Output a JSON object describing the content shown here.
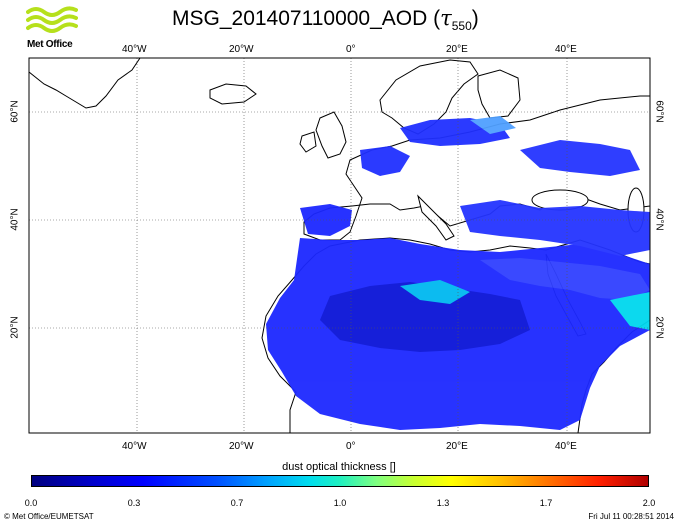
{
  "header": {
    "logo_text": "Met Office",
    "title_prefix": "MSG_201407110000_AOD (",
    "title_symbol": "τ",
    "title_sub": "550",
    "title_suffix": ")"
  },
  "map": {
    "lon_labels_top": [
      "40°W",
      "20°W",
      "0°",
      "20°E",
      "40°E"
    ],
    "lon_labels_bottom": [
      "40°W",
      "20°W",
      "0°",
      "20°E",
      "40°E"
    ],
    "lat_labels_left": [
      "60°N",
      "40°N",
      "20°N"
    ],
    "lat_labels_right": [
      "60°N",
      "40°N",
      "20°N"
    ],
    "gridlines": true,
    "colors": {
      "land": "#ffffff",
      "coast": "#000000",
      "aod_low": "#0000ff",
      "aod_mid": "#00ddee"
    }
  },
  "colorbar": {
    "title": "dust optical thickness []",
    "ticks": [
      "0.0",
      "0.3",
      "0.7",
      "1.0",
      "1.3",
      "1.7",
      "2.0"
    ],
    "range": [
      0.0,
      2.0
    ]
  },
  "footer": {
    "credit": "© Met Office/EUMETSAT",
    "timestamp": "Fri Jul 11 00:28:51 2014"
  }
}
